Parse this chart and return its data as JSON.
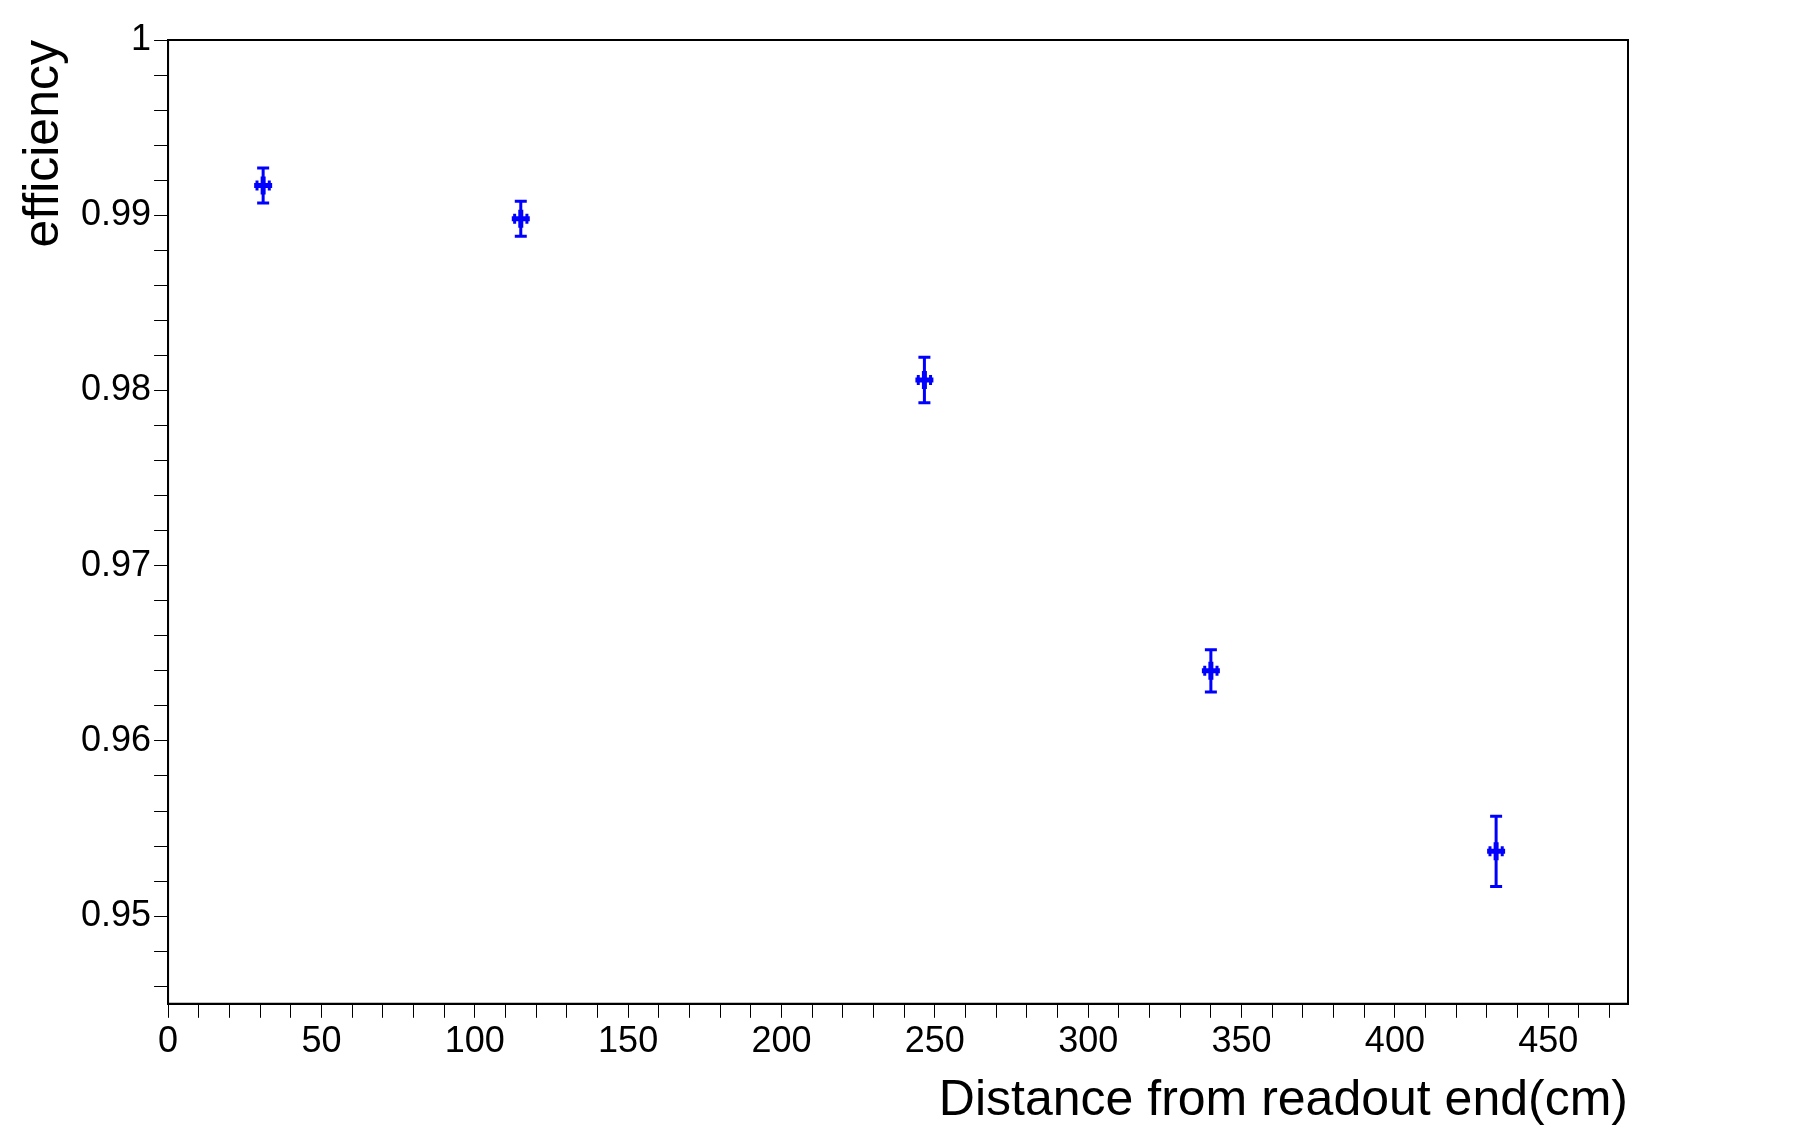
{
  "chart_data": {
    "type": "scatter",
    "xlabel": "Distance from readout end(cm)",
    "ylabel": "efficiency",
    "x": [
      31,
      115,
      246.6,
      340,
      433
    ],
    "values": [
      0.9917,
      0.9898,
      0.9806,
      0.964,
      0.9537
    ],
    "errors": [
      0.001,
      0.001,
      0.0013,
      0.0012,
      0.002
    ],
    "xerrors": [
      2,
      2,
      2,
      2,
      2
    ],
    "color": "#0000ff",
    "marker": "cross",
    "grid": false,
    "legend": false,
    "xlim": [
      0,
      476
    ],
    "xticks": [
      0,
      50,
      100,
      150,
      200,
      250,
      300,
      350,
      400,
      450
    ],
    "ylim": [
      0.945,
      1
    ],
    "yticks": [
      0.95,
      0.96,
      0.97,
      0.98,
      0.99,
      1
    ]
  }
}
